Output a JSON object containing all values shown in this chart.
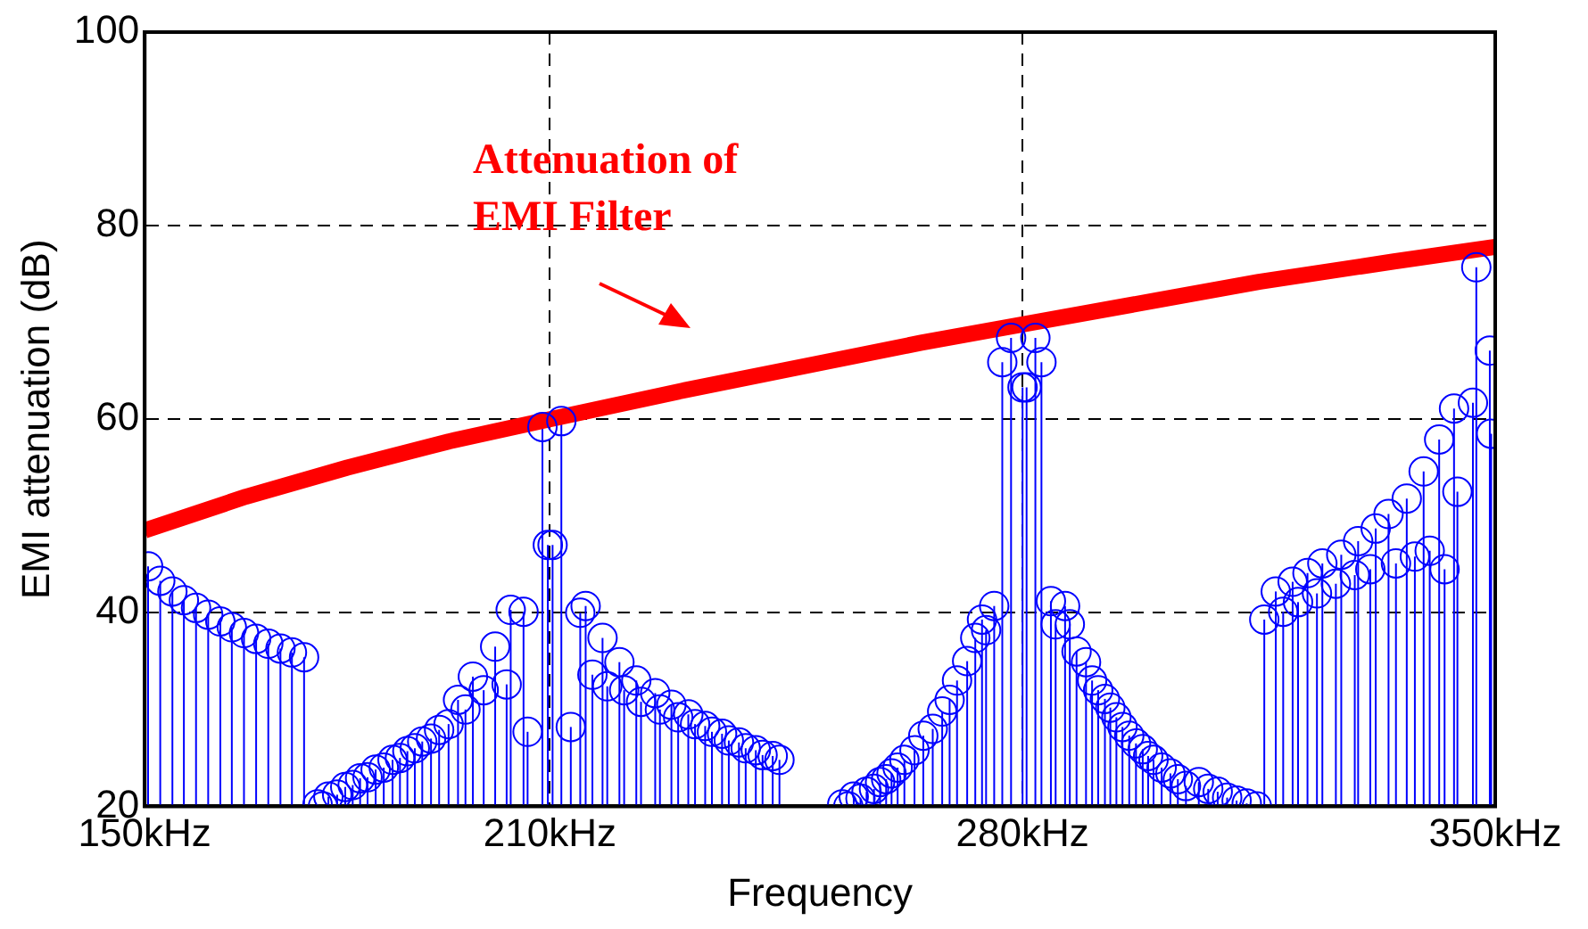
{
  "chart_data": {
    "type": "lollipop",
    "xlabel": "Frequency",
    "ylabel": "EMI attenuation (dB)",
    "annotations": [
      "Attenuation of EMI Filter"
    ],
    "xlim": [
      150,
      350
    ],
    "xticks": [
      {
        "value": 150,
        "label": "150kHz"
      },
      {
        "value": 210,
        "label": "210kHz"
      },
      {
        "value": 280,
        "label": "280kHz"
      },
      {
        "value": 350,
        "label": "350kHz"
      }
    ],
    "ylim": [
      20,
      100
    ],
    "yticks": [
      20,
      40,
      60,
      80,
      100
    ],
    "grid": true,
    "legend": false,
    "series": [
      {
        "color": "#0000ff",
        "marker": "circle",
        "x": [
          150.5,
          152.3,
          154.1,
          155.8,
          157.6,
          159.4,
          161.2,
          162.9,
          164.7,
          166.5,
          168.3,
          170.1,
          171.8,
          173.6,
          175.6,
          176.4,
          177.2,
          178.5,
          179.7,
          180.8,
          181.9,
          183.0,
          184.2,
          185.4,
          186.7,
          187.8,
          188.9,
          190.0,
          191.1,
          192.4,
          193.6,
          195.0,
          196.4,
          197.5,
          198.6,
          200.2,
          201.9,
          203.6,
          204.2,
          206.1,
          206.7,
          208.9,
          209.7,
          210.4,
          211.7,
          213.1,
          214.5,
          215.3,
          216.3,
          217.8,
          218.5,
          220.3,
          221.0,
          222.8,
          223.5,
          225.6,
          226.3,
          228.0,
          229.0,
          230.5,
          231.5,
          233.0,
          234.0,
          235.5,
          236.5,
          238.0,
          239.0,
          240.5,
          241.5,
          243.0,
          244.0,
          253.3,
          254.2,
          255.0,
          256.0,
          256.9,
          258.0,
          258.9,
          259.8,
          260.6,
          261.5,
          262.5,
          264.0,
          265.3,
          266.7,
          268.1,
          269.2,
          270.3,
          271.8,
          273.0,
          274.0,
          274.6,
          275.8,
          277.0,
          278.3,
          280.0,
          280.6,
          281.9,
          282.8,
          284.2,
          284.9,
          286.3,
          287.0,
          288.0,
          289.4,
          290.3,
          291.2,
          292.2,
          293.0,
          293.9,
          294.8,
          295.8,
          296.8,
          297.8,
          298.6,
          299.4,
          300.6,
          301.9,
          303.0,
          304.2,
          306.1,
          307.5,
          308.9,
          310.3,
          311.7,
          313.2,
          314.7,
          315.8,
          317.5,
          318.6,
          320.0,
          320.8,
          322.2,
          323.6,
          324.4,
          326.4,
          327.2,
          329.2,
          329.7,
          331.5,
          332.3,
          334.2,
          335.3,
          336.9,
          338.1,
          339.4,
          340.3,
          341.7,
          342.5,
          343.9,
          344.4,
          346.7,
          347.2,
          349.2,
          349.4
        ],
        "values": [
          44.8,
          43.3,
          42.2,
          41.3,
          40.5,
          39.8,
          39.1,
          38.5,
          37.9,
          37.3,
          36.8,
          36.3,
          35.9,
          35.4,
          20.2,
          20.0,
          21.0,
          21.2,
          22.0,
          22.2,
          22.9,
          23.0,
          23.8,
          24.0,
          24.8,
          25.0,
          25.7,
          26.0,
          26.7,
          27.0,
          27.9,
          28.5,
          31.0,
          30.0,
          33.4,
          32.0,
          36.5,
          32.6,
          40.3,
          40.1,
          27.7,
          59.2,
          47.0,
          47.0,
          59.8,
          28.2,
          40.0,
          40.7,
          33.6,
          37.4,
          32.4,
          34.9,
          32.0,
          33.0,
          30.8,
          31.7,
          30.0,
          30.5,
          29.2,
          29.5,
          28.5,
          28.3,
          27.7,
          27.5,
          26.8,
          26.6,
          26.0,
          25.8,
          25.3,
          25.2,
          24.8,
          20.2,
          20.0,
          21.0,
          20.8,
          21.5,
          21.8,
          22.5,
          22.8,
          23.4,
          24.0,
          24.8,
          25.8,
          27.3,
          28.0,
          29.8,
          31.0,
          33.0,
          35.0,
          37.4,
          39.3,
          38.2,
          40.7,
          65.9,
          68.4,
          63.3,
          63.3,
          68.4,
          65.9,
          41.2,
          38.8,
          40.7,
          38.8,
          36.0,
          34.9,
          33.0,
          32.0,
          31.1,
          30.2,
          29.2,
          28.2,
          27.3,
          26.5,
          25.9,
          25.2,
          24.8,
          24.0,
          23.4,
          22.8,
          22.1,
          22.5,
          21.8,
          21.5,
          20.9,
          20.6,
          20.3,
          20.0,
          39.3,
          42.2,
          40.1,
          43.2,
          41.1,
          44.1,
          42.0,
          45.1,
          43.0,
          46.0,
          43.9,
          47.4,
          44.5,
          48.7,
          50.2,
          45.1,
          51.8,
          45.8,
          54.6,
          46.4,
          57.9,
          44.5,
          61.1,
          52.5,
          61.7,
          75.7,
          67.1,
          58.5
        ]
      },
      {
        "type": "line",
        "color": "#ff0000",
        "x": [
          150,
          165,
          180,
          195,
          210,
          230,
          250,
          265,
          280,
          300,
          315,
          335,
          350
        ],
        "values": [
          48.5,
          52.0,
          55.0,
          57.7,
          60.0,
          63.0,
          65.8,
          67.9,
          69.8,
          72.3,
          74.2,
          76.3,
          77.8
        ]
      }
    ]
  }
}
